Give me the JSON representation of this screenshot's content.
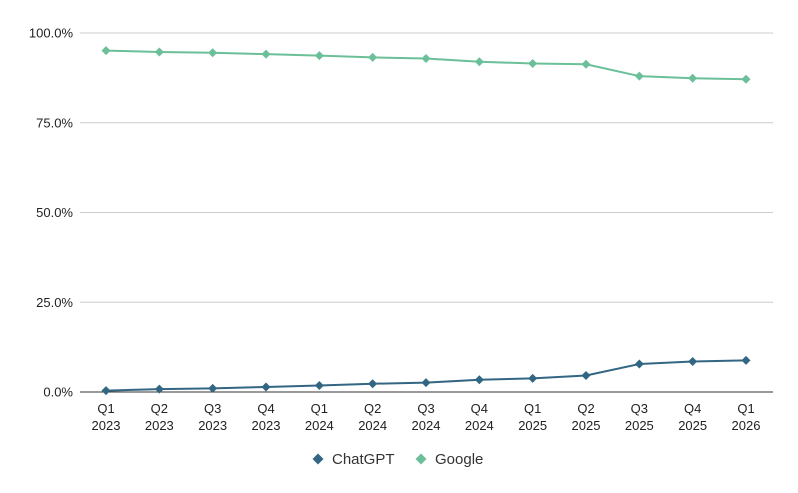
{
  "chart_data": {
    "type": "line",
    "title": "",
    "xlabel": "",
    "ylabel": "",
    "categories": [
      [
        "Q1",
        "2023"
      ],
      [
        "Q2",
        "2023"
      ],
      [
        "Q3",
        "2023"
      ],
      [
        "Q4",
        "2023"
      ],
      [
        "Q1",
        "2024"
      ],
      [
        "Q2",
        "2024"
      ],
      [
        "Q3",
        "2024"
      ],
      [
        "Q4",
        "2024"
      ],
      [
        "Q1",
        "2025"
      ],
      [
        "Q2",
        "2025"
      ],
      [
        "Q3",
        "2025"
      ],
      [
        "Q4",
        "2025"
      ],
      [
        "Q1",
        "2026"
      ]
    ],
    "ylim": [
      0,
      100
    ],
    "yticks": [
      0,
      25,
      50,
      75,
      100
    ],
    "ytick_labels": [
      "0.0%",
      "25.0%",
      "50.0%",
      "75.0%",
      "100.0%"
    ],
    "grid": true,
    "legend_position": "bottom",
    "series": [
      {
        "name": "ChatGPT",
        "color": "#336682",
        "marker": "diamond",
        "values": [
          0.4,
          0.8,
          1.0,
          1.4,
          1.8,
          2.3,
          2.6,
          3.4,
          3.8,
          4.6,
          7.8,
          8.5,
          8.8
        ]
      },
      {
        "name": "Google",
        "color": "#6bbf99",
        "marker": "diamond",
        "values": [
          95.1,
          94.7,
          94.5,
          94.1,
          93.7,
          93.2,
          92.9,
          92.0,
          91.5,
          91.3,
          88.0,
          87.4,
          87.1
        ]
      }
    ]
  }
}
